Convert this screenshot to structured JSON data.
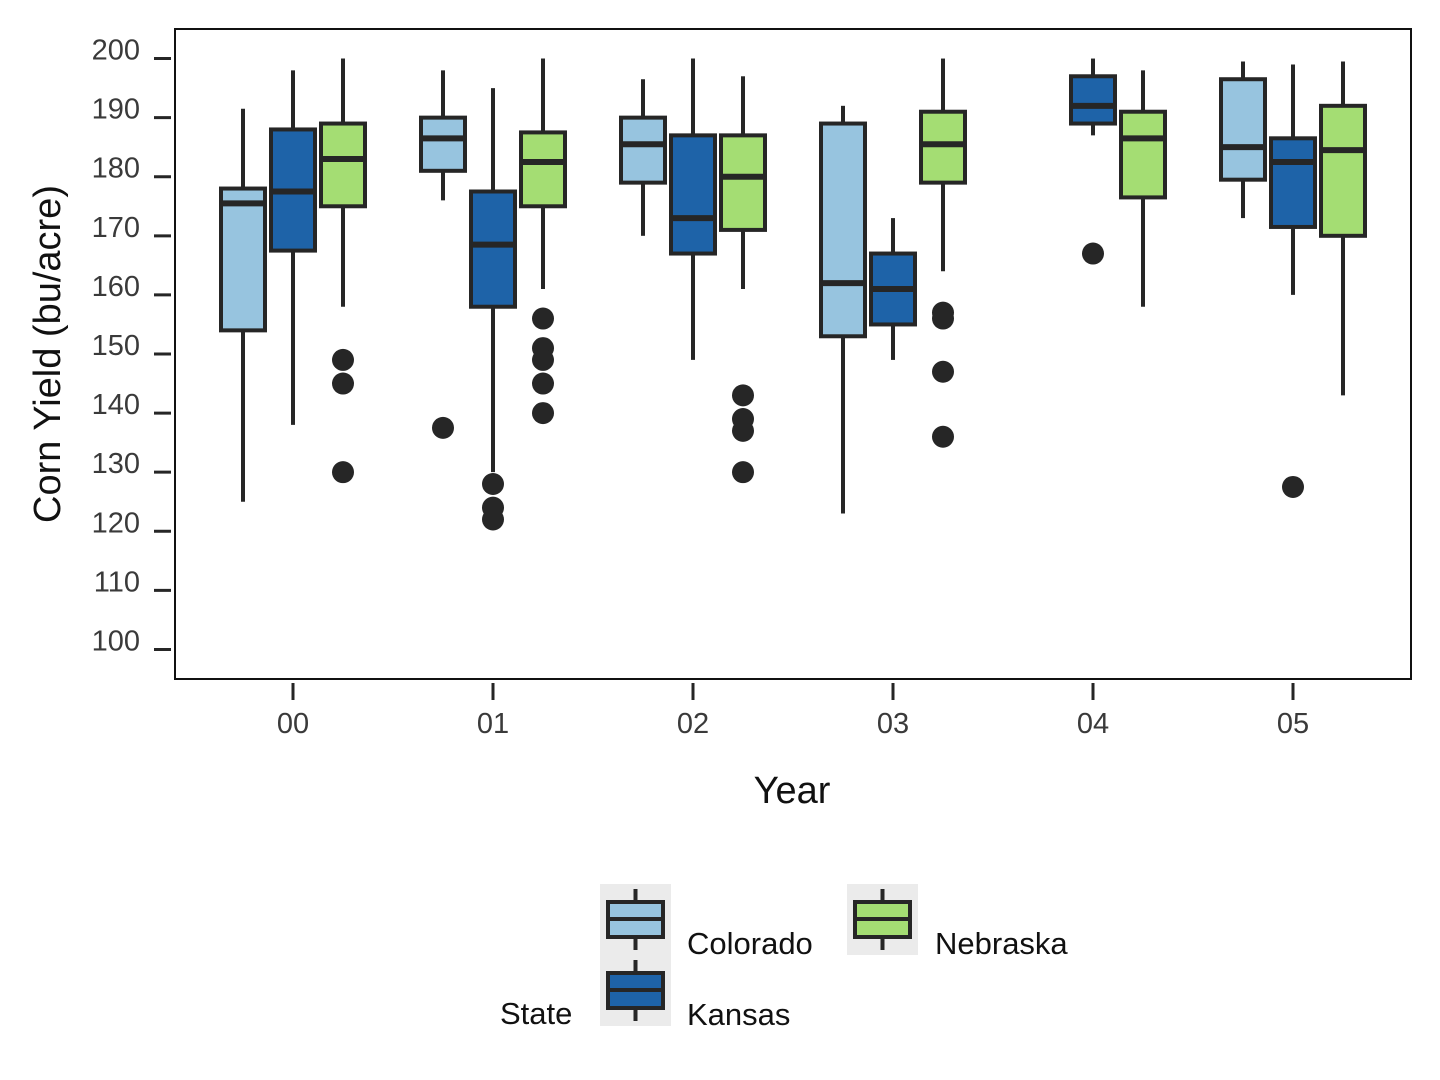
{
  "chart_data": {
    "type": "boxplot",
    "xlabel": "Year",
    "ylabel": "Corn Yield (bu/acre)",
    "categories": [
      "00",
      "01",
      "02",
      "03",
      "04",
      "05"
    ],
    "ylim": [
      95,
      205
    ],
    "yticks": [
      100,
      110,
      120,
      130,
      140,
      150,
      160,
      170,
      180,
      190,
      200
    ],
    "grid": false,
    "legend": {
      "title": "State",
      "placement": "bottom",
      "entries": [
        "Colorado",
        "Kansas",
        "Nebraska"
      ]
    },
    "series": [
      {
        "name": "Colorado",
        "color": "#97c4df",
        "boxes": [
          {
            "category": "00",
            "whisker_low": 125,
            "q1": 154,
            "median": 175.5,
            "q3": 178,
            "whisker_high": 191.5,
            "outliers": []
          },
          {
            "category": "01",
            "whisker_low": 176,
            "q1": 181,
            "median": 186.5,
            "q3": 190,
            "whisker_high": 198,
            "outliers": [
              137.5
            ]
          },
          {
            "category": "02",
            "whisker_low": 170,
            "q1": 179,
            "median": 185.5,
            "q3": 190,
            "whisker_high": 196.5,
            "outliers": []
          },
          {
            "category": "03",
            "whisker_low": 123,
            "q1": 153,
            "median": 162,
            "q3": 189,
            "whisker_high": 192,
            "outliers": []
          },
          {
            "category": "05",
            "whisker_low": 173,
            "q1": 179.5,
            "median": 185,
            "q3": 196.5,
            "whisker_high": 199.5,
            "outliers": []
          }
        ]
      },
      {
        "name": "Kansas",
        "color": "#1e63a8",
        "boxes": [
          {
            "category": "00",
            "whisker_low": 138,
            "q1": 167.5,
            "median": 177.5,
            "q3": 188,
            "whisker_high": 198,
            "outliers": []
          },
          {
            "category": "01",
            "whisker_low": 130,
            "q1": 158,
            "median": 168.5,
            "q3": 177.5,
            "whisker_high": 195,
            "outliers": [
              128,
              124,
              122
            ]
          },
          {
            "category": "02",
            "whisker_low": 149,
            "q1": 167,
            "median": 173,
            "q3": 187,
            "whisker_high": 200,
            "outliers": []
          },
          {
            "category": "03",
            "whisker_low": 149,
            "q1": 155,
            "median": 161,
            "q3": 167,
            "whisker_high": 173,
            "outliers": []
          },
          {
            "category": "04",
            "whisker_low": 187,
            "q1": 189,
            "median": 192,
            "q3": 197,
            "whisker_high": 200,
            "outliers": [
              167
            ]
          },
          {
            "category": "05",
            "whisker_low": 160,
            "q1": 171.5,
            "median": 182.5,
            "q3": 186.5,
            "whisker_high": 199,
            "outliers": [
              127.5
            ]
          }
        ]
      },
      {
        "name": "Nebraska",
        "color": "#a4dd73",
        "boxes": [
          {
            "category": "00",
            "whisker_low": 158,
            "q1": 175,
            "median": 183,
            "q3": 189,
            "whisker_high": 200,
            "outliers": [
              149,
              145,
              130
            ]
          },
          {
            "category": "01",
            "whisker_low": 161,
            "q1": 175,
            "median": 182.5,
            "q3": 187.5,
            "whisker_high": 200,
            "outliers": [
              156,
              151,
              149,
              145,
              140
            ]
          },
          {
            "category": "02",
            "whisker_low": 161,
            "q1": 171,
            "median": 180,
            "q3": 187,
            "whisker_high": 197,
            "outliers": [
              143,
              139,
              137,
              130
            ]
          },
          {
            "category": "03",
            "whisker_low": 164,
            "q1": 179,
            "median": 185.5,
            "q3": 191,
            "whisker_high": 200,
            "outliers": [
              157,
              156,
              147,
              136
            ]
          },
          {
            "category": "04",
            "whisker_low": 158,
            "q1": 176.5,
            "median": 186.5,
            "q3": 191,
            "whisker_high": 198,
            "outliers": []
          },
          {
            "category": "05",
            "whisker_low": 143,
            "q1": 170,
            "median": 184.5,
            "q3": 192,
            "whisker_high": 199.5,
            "outliers": []
          }
        ]
      }
    ]
  }
}
